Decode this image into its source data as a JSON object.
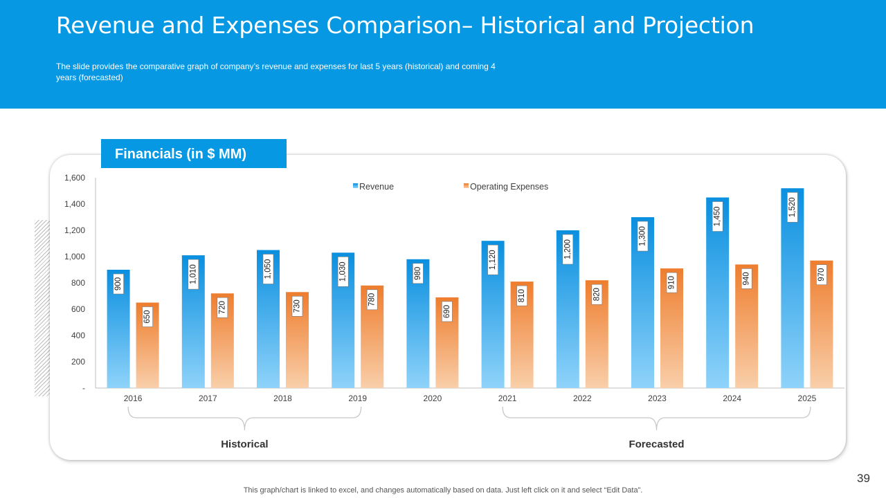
{
  "header": {
    "title": "Revenue and Expenses Comparison– Historical and Projection",
    "subtitle": "The slide provides  the comparative  graph  of company’s revenue  and expenses for last 5 years (historical) and coming 4 years (forecasted)"
  },
  "card": {
    "tab_label": "Financials (in $ MM)"
  },
  "chart_data": {
    "type": "bar",
    "title": "Financials (in $ MM)",
    "categories": [
      "2016",
      "2017",
      "2018",
      "2019",
      "2020",
      "2021",
      "2022",
      "2023",
      "2024",
      "2025"
    ],
    "series": [
      {
        "name": "Revenue",
        "values": [
          900,
          1010,
          1050,
          1030,
          980,
          1120,
          1200,
          1300,
          1450,
          1520
        ],
        "labels": [
          "900",
          "1,010",
          "1,050",
          "1,030",
          "980",
          "1,120",
          "1,200",
          "1,300",
          "1,450",
          "1,520"
        ]
      },
      {
        "name": "Operating Expenses",
        "values": [
          650,
          720,
          730,
          780,
          690,
          810,
          820,
          910,
          940,
          970
        ],
        "labels": [
          "650",
          "720",
          "730",
          "780",
          "690",
          "810",
          "820",
          "910",
          "940",
          "970"
        ]
      }
    ],
    "ylim": [
      0,
      1600
    ],
    "yticks": [
      0,
      200,
      400,
      600,
      800,
      1000,
      1200,
      1400,
      1600
    ],
    "ytick_labels": [
      "-",
      "200",
      "400",
      "600",
      "800",
      "1,000",
      "1,200",
      "1,400",
      "1,600"
    ],
    "xlabel": "",
    "ylabel": "",
    "legend_position": "top-center",
    "gridlines": false,
    "groups": [
      {
        "label": "Historical",
        "from": "2016",
        "to": "2019"
      },
      {
        "label": "Forecasted",
        "from": "2021",
        "to": "2025"
      }
    ]
  },
  "colors": {
    "header_bg": "#0698e3",
    "revenue_top": "#0a8fdf",
    "revenue_bottom": "#8fd3fa",
    "expenses_top": "#ee7d2e",
    "expenses_bottom": "#f9cfaa"
  },
  "footer": {
    "note": "This graph/chart is linked to excel,  and changes automatically based on data. Just left click on it and select “Edit Data”.",
    "page_number": "39"
  }
}
